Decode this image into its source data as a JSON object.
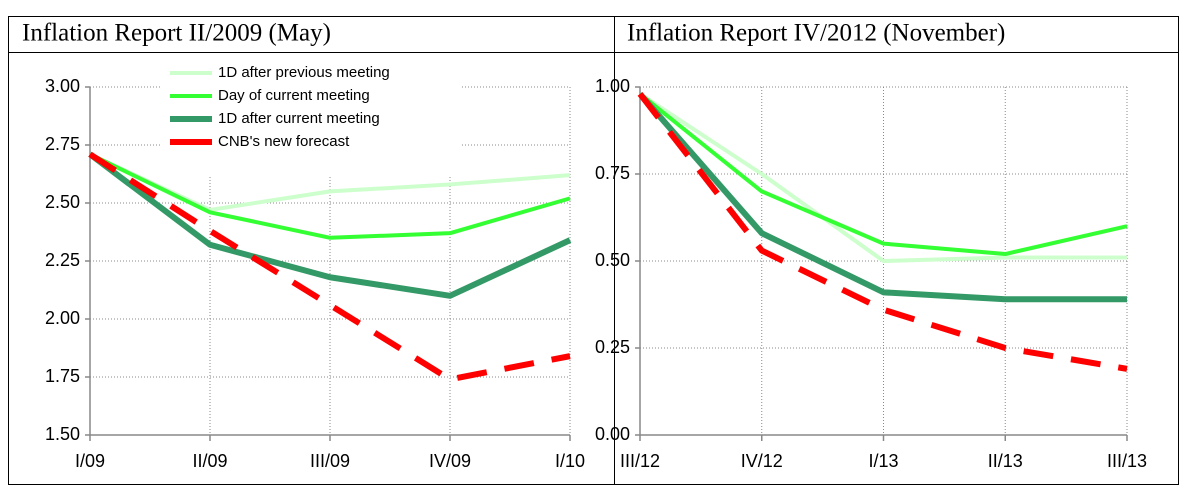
{
  "chart_data": [
    {
      "type": "line",
      "title": "Inflation Report II/2009 (May)",
      "categories": [
        "I/09",
        "II/09",
        "III/09",
        "IV/09",
        "I/10"
      ],
      "series": [
        {
          "name": "1D after previous meeting",
          "color": "#ccffcc",
          "values": [
            2.71,
            2.47,
            2.55,
            2.58,
            2.62
          ]
        },
        {
          "name": "Day of current meeting",
          "color": "#33ff33",
          "values": [
            2.71,
            2.46,
            2.35,
            2.37,
            2.52
          ]
        },
        {
          "name": "1D after current meeting",
          "color": "#339966",
          "values": [
            2.71,
            2.32,
            2.18,
            2.1,
            2.34
          ]
        },
        {
          "name": "CNB's new forecast",
          "color": "#ff0000",
          "dashed": true,
          "values": [
            2.71,
            2.38,
            2.06,
            1.74,
            1.84
          ]
        }
      ],
      "ylim": [
        1.5,
        3
      ],
      "yticks": [
        {
          "value": 1.5,
          "label": "1.50"
        },
        1.75,
        {
          "value": 2,
          "label": "2.00"
        },
        2.25,
        {
          "value": 2.5,
          "label": "2.50"
        },
        2.75,
        {
          "value": 3,
          "label": "3.00"
        }
      ],
      "grid": true,
      "legend": "top"
    },
    {
      "type": "line",
      "title": "Inflation Report IV/2012 (November)",
      "categories": [
        "III/12",
        "IV/12",
        "I/13",
        "II/13",
        "III/13"
      ],
      "series": [
        {
          "color": "#ccffcc",
          "values": [
            0.98,
            0.75,
            0.5,
            0.51,
            0.51
          ]
        },
        {
          "color": "#33ff33",
          "values": [
            0.98,
            0.7,
            0.55,
            0.52,
            0.6
          ]
        },
        {
          "color": "#339966",
          "values": [
            0.98,
            0.58,
            0.41,
            0.39,
            0.39
          ]
        },
        {
          "color": "#ff0000",
          "dashed": true,
          "values": [
            0.98,
            0.53,
            0.36,
            0.25,
            0.19
          ]
        }
      ],
      "ylim": [
        0,
        1
      ],
      "yticks": [
        {
          "value": 0,
          "label": "0.00"
        },
        0.25,
        {
          "value": 0.5,
          "label": "0.50"
        },
        0.75,
        {
          "value": 1,
          "label": "1.00"
        }
      ],
      "grid": true
    }
  ]
}
